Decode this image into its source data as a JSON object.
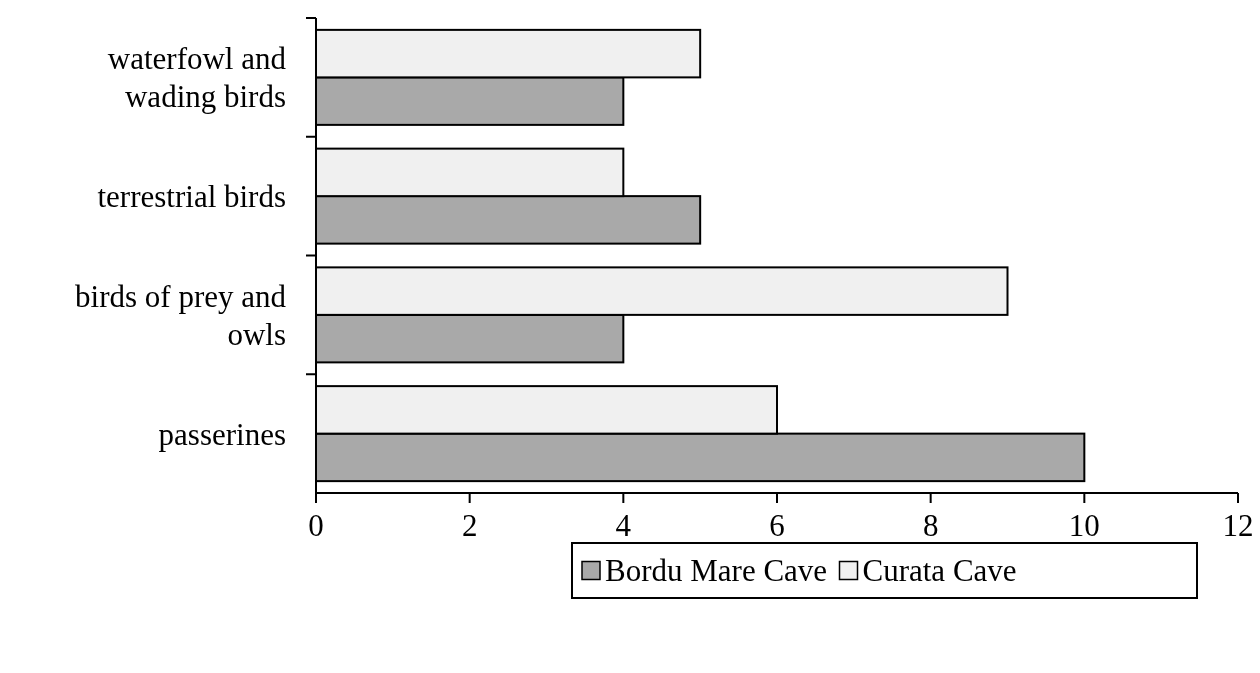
{
  "chart_data": {
    "type": "bar",
    "orientation": "horizontal",
    "categories": [
      "waterfowl and wading birds",
      "terrestrial birds",
      "birds of prey and owls",
      "passerines"
    ],
    "series": [
      {
        "name": "Bordu Mare Cave",
        "color": "#a9a9a9",
        "values": [
          4,
          5,
          4,
          10
        ]
      },
      {
        "name": "Curata Cave",
        "color": "#f0f0f0",
        "values": [
          5,
          4,
          9,
          6
        ]
      }
    ],
    "xlim": [
      0,
      12
    ],
    "xticks": [
      0,
      2,
      4,
      6,
      8,
      10,
      12
    ],
    "grid": false,
    "legend": "bottom right"
  }
}
